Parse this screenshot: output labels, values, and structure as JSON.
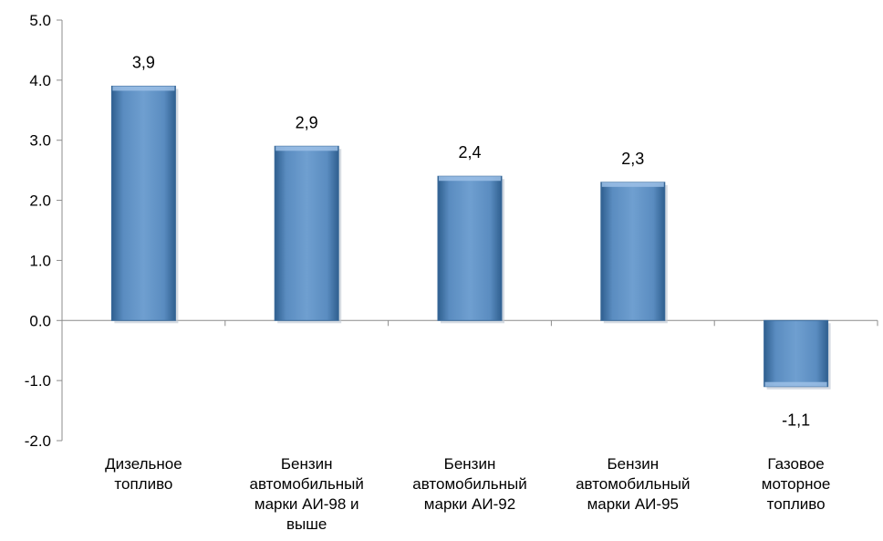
{
  "chart_data": {
    "type": "bar",
    "title": "",
    "xlabel": "",
    "ylabel": "",
    "ylim": [
      -2.0,
      5.0
    ],
    "yticks": [
      5.0,
      4.0,
      3.0,
      2.0,
      1.0,
      0.0,
      -1.0,
      -2.0
    ],
    "ytick_labels": [
      "5.0",
      "4.0",
      "3.0",
      "2.0",
      "1.0",
      "0.0",
      "-1.0",
      "-2.0"
    ],
    "grid": false,
    "bar_color": "#4F81BD",
    "categories": [
      [
        "Дизельное",
        "топливо"
      ],
      [
        "Бензин",
        "автомобильный",
        "марки АИ-98 и",
        "выше"
      ],
      [
        "Бензин",
        "автомобильный",
        "марки АИ-92"
      ],
      [
        "Бензин",
        "автомобильный",
        "марки АИ-95"
      ],
      [
        "Газовое",
        "моторное",
        "топливо"
      ]
    ],
    "values": [
      3.9,
      2.9,
      2.4,
      2.3,
      -1.1
    ],
    "value_labels": [
      "3,9",
      "2,9",
      "2,4",
      "2,3",
      "-1,1"
    ]
  }
}
